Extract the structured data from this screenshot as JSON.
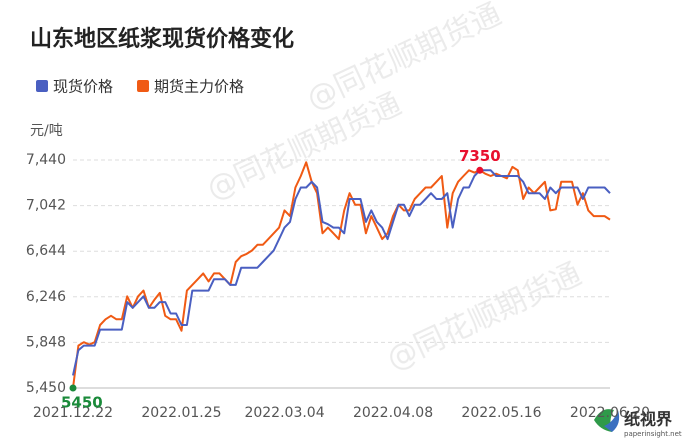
{
  "chart_data": {
    "type": "line",
    "title": "山东地区纸浆现货价格变化",
    "y_unit": "元/吨",
    "watermarks": [
      "@同花顺期货通",
      "@同花顺期货通",
      "@同花顺期货通"
    ],
    "logo": {
      "name": "纸视界",
      "url": "paperinsight.net"
    },
    "legend": "top-left",
    "grid": true,
    "ylim": [
      5450,
      7440
    ],
    "yticks": [
      {
        "value": 5450,
        "label": "5,450"
      },
      {
        "value": 5848,
        "label": "5,848"
      },
      {
        "value": 6246,
        "label": "6,246"
      },
      {
        "value": 6644,
        "label": "6,644"
      },
      {
        "value": 7042,
        "label": "7,042"
      },
      {
        "value": 7440,
        "label": "7,440"
      }
    ],
    "categories": [
      "2021.12.22",
      null,
      null,
      null,
      null,
      null,
      null,
      null,
      null,
      null,
      null,
      null,
      null,
      null,
      null,
      null,
      null,
      null,
      null,
      null,
      "2022.01.25",
      null,
      null,
      null,
      null,
      null,
      null,
      null,
      null,
      null,
      null,
      null,
      null,
      null,
      null,
      null,
      null,
      null,
      null,
      "2022.03.04",
      null,
      null,
      null,
      null,
      null,
      null,
      null,
      null,
      null,
      null,
      null,
      null,
      null,
      null,
      null,
      null,
      null,
      null,
      null,
      "2022.04.08",
      null,
      null,
      null,
      null,
      null,
      null,
      null,
      null,
      null,
      null,
      null,
      null,
      null,
      null,
      null,
      null,
      null,
      null,
      null,
      "2022.05.16",
      null,
      null,
      null,
      null,
      null,
      null,
      null,
      null,
      null,
      null,
      null,
      null,
      null,
      null,
      null,
      null,
      null,
      null,
      null,
      "2022.06.20"
    ],
    "series": [
      {
        "name": "现货价格",
        "color": "#4a5fc1",
        "values": [
          5560,
          5780,
          5820,
          5820,
          5820,
          5960,
          5960,
          5960,
          5960,
          5960,
          6200,
          6150,
          6200,
          6250,
          6150,
          6150,
          6200,
          6200,
          6100,
          6100,
          6000,
          6000,
          6300,
          6300,
          6300,
          6300,
          6400,
          6400,
          6400,
          6350,
          6350,
          6500,
          6500,
          6500,
          6500,
          6550,
          6600,
          6650,
          6750,
          6850,
          6900,
          7100,
          7200,
          7200,
          7250,
          7200,
          6900,
          6880,
          6850,
          6850,
          6800,
          7100,
          7100,
          7100,
          6900,
          7000,
          6900,
          6850,
          6750,
          6900,
          7050,
          7050,
          6950,
          7050,
          7050,
          7100,
          7150,
          7100,
          7100,
          7150,
          6850,
          7100,
          7200,
          7200,
          7300,
          7350,
          7350,
          7350,
          7300,
          7300,
          7300,
          7300,
          7300,
          7250,
          7150,
          7150,
          7150,
          7100,
          7200,
          7150,
          7200,
          7200,
          7200,
          7200,
          7100,
          7200,
          7200,
          7200,
          7200,
          7150
        ]
      },
      {
        "name": "期货主力价格",
        "color": "#f05a14",
        "values": [
          5450,
          5820,
          5850,
          5830,
          5850,
          6000,
          6050,
          6080,
          6050,
          6050,
          6250,
          6150,
          6250,
          6300,
          6150,
          6220,
          6280,
          6080,
          6050,
          6050,
          5950,
          6300,
          6350,
          6400,
          6450,
          6380,
          6450,
          6450,
          6400,
          6350,
          6550,
          6600,
          6620,
          6650,
          6700,
          6700,
          6750,
          6800,
          6850,
          7000,
          6950,
          7200,
          7300,
          7420,
          7250,
          7150,
          6800,
          6850,
          6800,
          6750,
          7000,
          7150,
          7050,
          7050,
          6800,
          6950,
          6850,
          6750,
          6800,
          6950,
          7050,
          7000,
          7000,
          7100,
          7150,
          7200,
          7200,
          7250,
          7300,
          6850,
          7150,
          7250,
          7300,
          7350,
          7330,
          7350,
          7320,
          7300,
          7320,
          7300,
          7280,
          7380,
          7350,
          7100,
          7200,
          7150,
          7200,
          7250,
          7000,
          7010,
          7250,
          7250,
          7250,
          7050,
          7150,
          7000,
          6950,
          6950,
          6950,
          6920
        ]
      }
    ],
    "annotations": [
      {
        "series": 0,
        "index": 75,
        "label": "7350",
        "color": "#e8102e"
      },
      {
        "series": 1,
        "index": 0,
        "label": "5450",
        "color": "#1a8a3a"
      }
    ]
  }
}
